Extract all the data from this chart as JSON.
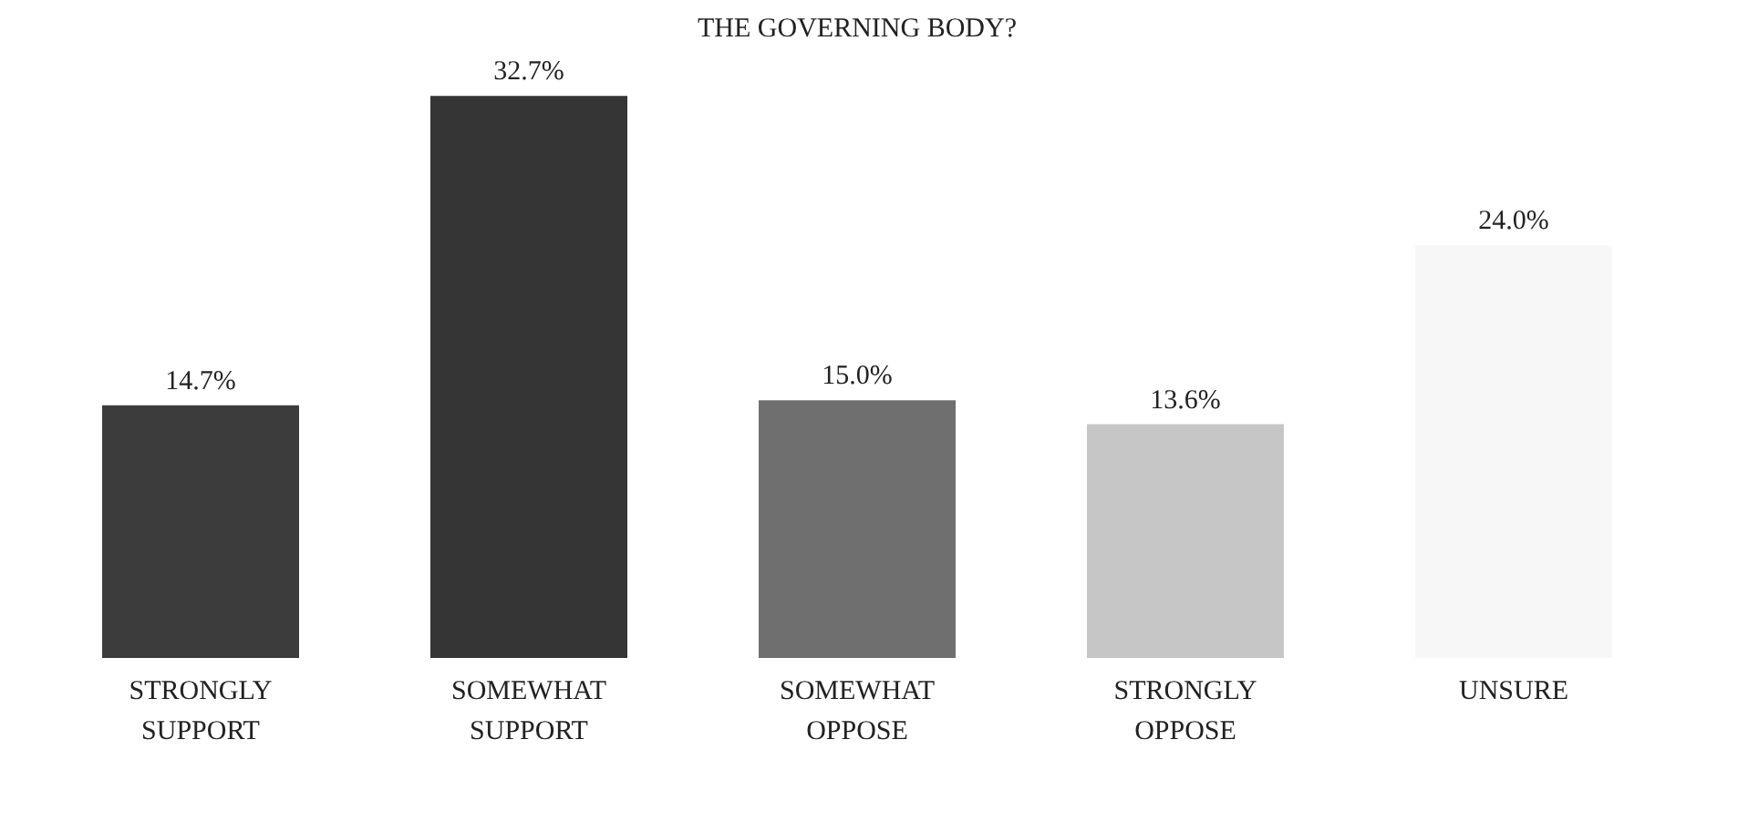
{
  "chart_data": {
    "type": "bar",
    "title": "THE GOVERNING BODY?",
    "categories": [
      "STRONGLY SUPPORT",
      "SOMEWHAT SUPPORT",
      "SOMEWHAT OPPOSE",
      "STRONGLY OPPOSE",
      "UNSURE"
    ],
    "values": [
      14.7,
      32.7,
      15.0,
      13.6,
      24.0
    ],
    "colors": [
      "#3c3c3c",
      "#353535",
      "#6f6f6f",
      "#c6c6c6",
      "#f7f7f7"
    ],
    "value_labels": [
      "14.7%",
      "32.7%",
      "15.0%",
      "13.6%",
      "24.0%"
    ]
  }
}
